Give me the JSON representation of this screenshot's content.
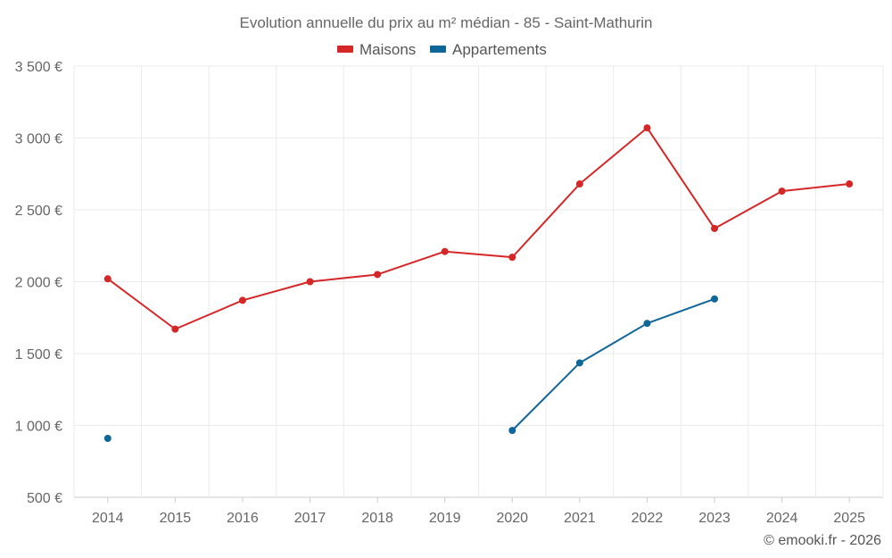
{
  "chart_data": {
    "type": "line",
    "title": "Evolution annuelle du prix au m² médian - 85 - Saint-Mathurin",
    "xlabel": "",
    "ylabel": "",
    "categories": [
      "2014",
      "2015",
      "2016",
      "2017",
      "2018",
      "2019",
      "2020",
      "2021",
      "2022",
      "2023",
      "2024",
      "2025"
    ],
    "ylim": [
      500,
      3500
    ],
    "yticks": [
      500,
      1000,
      1500,
      2000,
      2500,
      3000,
      3500
    ],
    "ytick_labels": [
      "500 €",
      "1 000 €",
      "1 500 €",
      "2 000 €",
      "2 500 €",
      "3 000 €",
      "3 500 €"
    ],
    "grid": true,
    "legend_position": "top-center",
    "series": [
      {
        "name": "Maisons",
        "color": "#d62728",
        "values": [
          2020,
          1670,
          1870,
          2000,
          2050,
          2210,
          2170,
          2680,
          3070,
          2370,
          2630,
          2680
        ]
      },
      {
        "name": "Appartements",
        "color": "#0f6698",
        "values": [
          910,
          null,
          null,
          null,
          null,
          null,
          965,
          1435,
          1710,
          1880,
          null,
          null
        ]
      }
    ],
    "credit": "© emooki.fr - 2026"
  }
}
